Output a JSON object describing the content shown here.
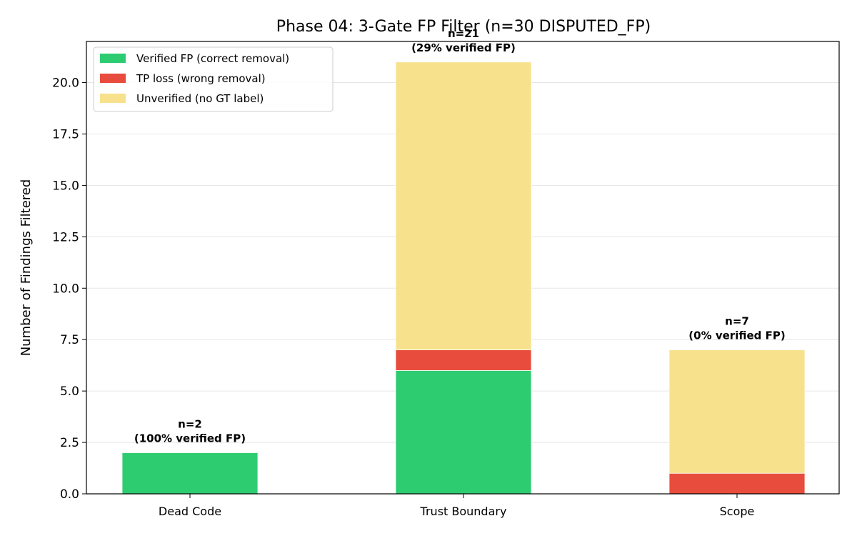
{
  "chart_data": {
    "type": "bar",
    "stacked": true,
    "title": "Phase 04: 3-Gate FP Filter (n=30 DISPUTED_FP)",
    "xlabel": "",
    "ylabel": "Number of Findings Filtered",
    "ylim": [
      0,
      22
    ],
    "yticks": [
      0.0,
      2.5,
      5.0,
      7.5,
      10.0,
      12.5,
      15.0,
      17.5,
      20.0
    ],
    "grid": "horizontal",
    "legend_position": "top-left",
    "categories": [
      "Dead Code",
      "Trust Boundary",
      "Scope"
    ],
    "series": [
      {
        "name": "Verified FP (correct removal)",
        "values": [
          2,
          6,
          0
        ],
        "color": "#2ecc71"
      },
      {
        "name": "TP loss (wrong removal)",
        "values": [
          0,
          1,
          1
        ],
        "color": "#e74c3c"
      },
      {
        "name": "Unverified (no GT label)",
        "values": [
          0,
          14,
          6
        ],
        "color": "#f7e18c"
      }
    ],
    "annotations": [
      {
        "line1": "n=2",
        "line2": "(100% verified FP)"
      },
      {
        "line1": "n=21",
        "line2": "(29% verified FP)"
      },
      {
        "line1": "n=7",
        "line2": "(0% verified FP)"
      }
    ]
  }
}
